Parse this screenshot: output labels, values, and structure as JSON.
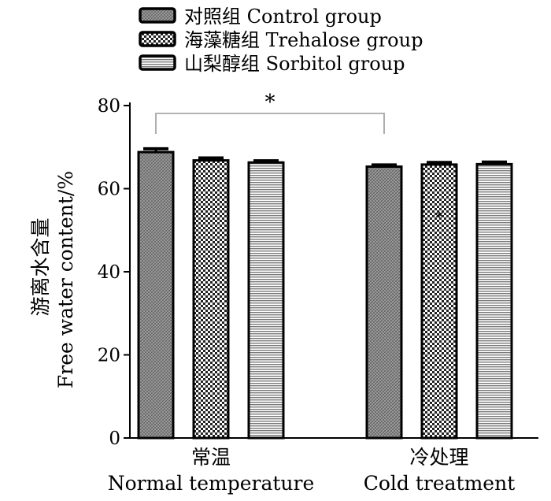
{
  "chart_data": {
    "type": "bar",
    "title": "",
    "ylabel_cn": "游离水含量",
    "ylabel_en": "Free water content/%",
    "ylim": [
      0,
      80
    ],
    "yticks": [
      "0",
      "20",
      "40",
      "60",
      "80"
    ],
    "categories": [
      {
        "cn": "常温",
        "en": "Normal temperature"
      },
      {
        "cn": "冷处理",
        "en": "Cold treatment"
      }
    ],
    "series": [
      {
        "name": "对照组 Control group",
        "values": [
          68.8,
          65.3
        ],
        "errors": [
          0.8,
          0.4
        ],
        "pattern": "fine-hatch"
      },
      {
        "name": "海藻糖组 Trehalose group",
        "values": [
          66.8,
          65.8
        ],
        "errors": [
          0.6,
          0.5
        ],
        "pattern": "checker"
      },
      {
        "name": "山梨醇组 Sorbitol group",
        "values": [
          66.3,
          65.9
        ],
        "errors": [
          0.4,
          0.5
        ],
        "pattern": "horizontal-lines"
      }
    ],
    "legend_position": "top",
    "annotations": {
      "significance_bracket": "*",
      "bar_mark": "*"
    }
  }
}
